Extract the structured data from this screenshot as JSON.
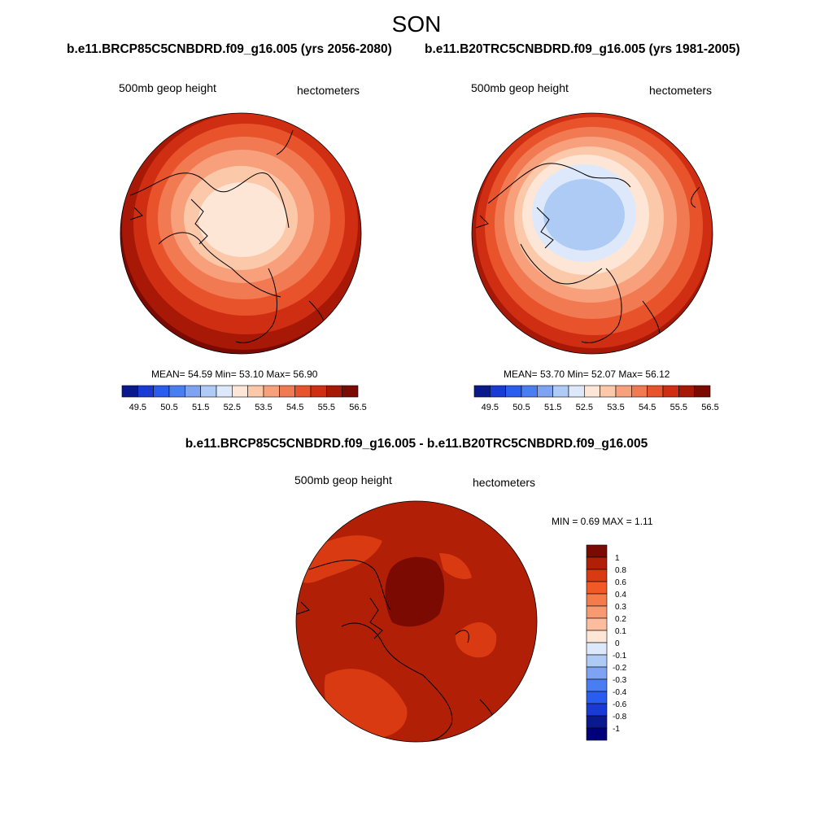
{
  "title": "SON",
  "panels": [
    {
      "subtitle": "b.e11.BRCP85C5CNBDRD.f09_g16.005 (yrs 2056-2080)",
      "variable": "500mb geop height",
      "units": "hectometers",
      "stats": {
        "label": "MEAN=  54.59  Min=  53.10  Max=  56.90"
      }
    },
    {
      "subtitle": "b.e11.B20TRC5CNBDRD.f09_g16.005 (yrs 1981-2005)",
      "variable": "500mb geop height",
      "units": "hectometers",
      "stats": {
        "label": "MEAN=  53.70  Min=  52.07  Max=  56.12"
      }
    },
    {
      "subtitle": "b.e11.BRCP85C5CNBDRD.f09_g16.005 - b.e11.B20TRC5CNBDRD.f09_g16.005",
      "variable": "500mb geop height",
      "units": "hectometers",
      "stats": {
        "label": "MIN =   0.69 MAX =   1.11"
      }
    }
  ],
  "colorbar_horizontal": {
    "ticks": [
      "49.5",
      "50.5",
      "51.5",
      "52.5",
      "53.5",
      "54.5",
      "55.5",
      "56.5"
    ],
    "colors": [
      "#0a1a8c",
      "#1a3ad6",
      "#2b5cf0",
      "#4a7df2",
      "#7ea3f2",
      "#aecbf5",
      "#dde9fb",
      "#fde6d6",
      "#fcc8aa",
      "#f8a07c",
      "#f27a52",
      "#e8532c",
      "#cf2e12",
      "#a81806",
      "#7a0a02"
    ]
  },
  "colorbar_vertical": {
    "ticks": [
      "1",
      "0.8",
      "0.6",
      "0.4",
      "0.3",
      "0.2",
      "0.1",
      "0",
      "-0.1",
      "-0.2",
      "-0.3",
      "-0.4",
      "-0.6",
      "-0.8",
      "-1"
    ],
    "colors": [
      "#7a0a02",
      "#b01f06",
      "#d93a12",
      "#f15a26",
      "#f47b4a",
      "#f79a72",
      "#fbbd9e",
      "#fde6d6",
      "#dde9fb",
      "#aecbf5",
      "#7ea3f2",
      "#4a7df2",
      "#2b5cf0",
      "#1a3ad6",
      "#0a1a8c",
      "#00007a"
    ]
  }
}
